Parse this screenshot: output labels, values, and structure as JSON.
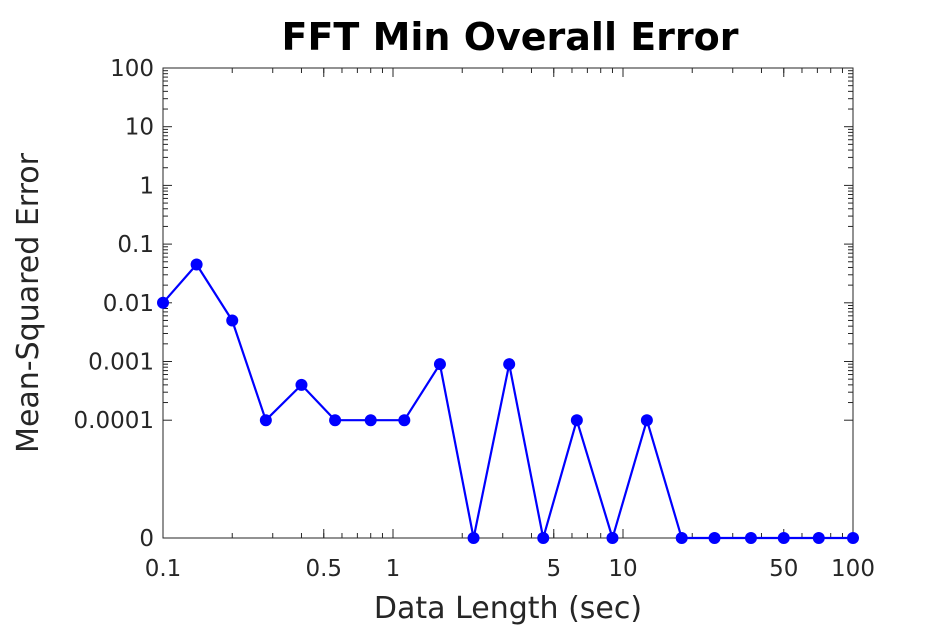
{
  "chart_data": {
    "type": "line",
    "title": "FFT Min Overall Error",
    "xlabel": "Data Length (sec)",
    "ylabel": "Mean-Squared Error",
    "x_scale": "log",
    "xlim": [
      0.1,
      100
    ],
    "x_ticks": [
      {
        "value": 0.1,
        "label": "0.1"
      },
      {
        "value": 0.5,
        "label": "0.5"
      },
      {
        "value": 1,
        "label": "1"
      },
      {
        "value": 5,
        "label": "5"
      },
      {
        "value": 10,
        "label": "10"
      },
      {
        "value": 50,
        "label": "50"
      },
      {
        "value": 100,
        "label": "100"
      }
    ],
    "y_scale": "log (zero shown at bottom)",
    "y_ticks": [
      {
        "value": 0,
        "label": "0"
      },
      {
        "value": 0.0001,
        "label": "0.0001"
      },
      {
        "value": 0.001,
        "label": "0.001"
      },
      {
        "value": 0.01,
        "label": "0.01"
      },
      {
        "value": 0.1,
        "label": "0.1"
      },
      {
        "value": 1,
        "label": "1"
      },
      {
        "value": 10,
        "label": "10"
      },
      {
        "value": 100,
        "label": "100"
      }
    ],
    "grid": false,
    "series": [
      {
        "color": "#0000ff",
        "marker": "circle",
        "x": [
          0.1,
          0.14,
          0.2,
          0.28,
          0.4,
          0.56,
          0.8,
          1.12,
          1.6,
          2.24,
          3.2,
          4.5,
          6.3,
          9,
          12.7,
          18,
          25,
          36,
          50,
          71,
          100
        ],
        "y": [
          0.01,
          0.045,
          0.005,
          0.0001,
          0.0004,
          0.0001,
          0.0001,
          0.0001,
          0.0009,
          0,
          0.0009,
          0,
          0.0001,
          0,
          0.0001,
          0,
          0,
          0,
          0,
          0,
          0
        ]
      }
    ]
  }
}
